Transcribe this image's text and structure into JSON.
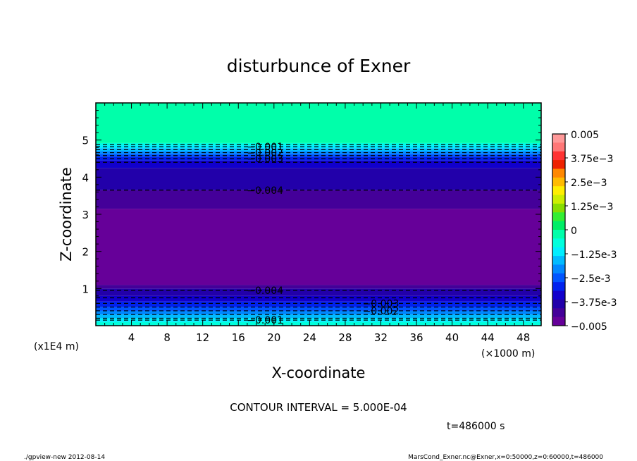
{
  "chart_data": {
    "type": "heatmap",
    "title": "disturbunce of Exner",
    "xlabel": "X-coordinate",
    "ylabel": "Z-coordinate",
    "x_unit": "(×1000 m)",
    "y_unit": "(x1E4 m)",
    "xlim": [
      0,
      50
    ],
    "ylim": [
      0,
      6
    ],
    "x_ticks": [
      "4",
      "8",
      "12",
      "16",
      "20",
      "24",
      "28",
      "32",
      "36",
      "40",
      "44",
      "48"
    ],
    "y_ticks": [
      "1",
      "2",
      "3",
      "4",
      "5"
    ],
    "colorbar": {
      "range": [
        -0.005,
        0.005
      ],
      "labels": [
        "0.005",
        "3.75e-3",
        "2.5e-3",
        "1.25e-3",
        "0",
        "-1.25e-3",
        "-2.5e-3",
        "-3.75e-3",
        "-0.005"
      ],
      "colors": [
        "#ff9999",
        "#ff7777",
        "#ff3333",
        "#ee2200",
        "#ff8800",
        "#ffbb00",
        "#ffee00",
        "#ccee00",
        "#88dd00",
        "#33ee33",
        "#00ee66",
        "#00ffaa",
        "#00ffdd",
        "#00eeff",
        "#00bbff",
        "#0088ff",
        "#0055ff",
        "#0022ee",
        "#1100cc",
        "#2200aa",
        "#440099",
        "#660099"
      ]
    },
    "layers": [
      {
        "z_bottom": 0.0,
        "z_top": 0.1,
        "value": -0.0005
      },
      {
        "z_bottom": 0.1,
        "z_top": 0.2,
        "value": -0.001
      },
      {
        "z_bottom": 0.2,
        "z_top": 0.3,
        "value": -0.0015
      },
      {
        "z_bottom": 0.3,
        "z_top": 0.4,
        "value": -0.002
      },
      {
        "z_bottom": 0.4,
        "z_top": 0.5,
        "value": -0.0025
      },
      {
        "z_bottom": 0.5,
        "z_top": 0.65,
        "value": -0.003
      },
      {
        "z_bottom": 0.65,
        "z_top": 0.8,
        "value": -0.0035
      },
      {
        "z_bottom": 0.8,
        "z_top": 1.0,
        "value": -0.004
      },
      {
        "z_bottom": 1.0,
        "z_top": 1.1,
        "value": -0.0045
      },
      {
        "z_bottom": 1.1,
        "z_top": 3.15,
        "value": -0.0048
      },
      {
        "z_bottom": 3.15,
        "z_top": 3.65,
        "value": -0.0045
      },
      {
        "z_bottom": 3.65,
        "z_top": 4.25,
        "value": -0.004
      },
      {
        "z_bottom": 4.25,
        "z_top": 4.45,
        "value": -0.0035
      },
      {
        "z_bottom": 4.45,
        "z_top": 4.55,
        "value": -0.003
      },
      {
        "z_bottom": 4.55,
        "z_top": 4.62,
        "value": -0.0025
      },
      {
        "z_bottom": 4.62,
        "z_top": 4.7,
        "value": -0.002
      },
      {
        "z_bottom": 4.7,
        "z_top": 4.78,
        "value": -0.0015
      },
      {
        "z_bottom": 4.78,
        "z_top": 4.86,
        "value": -0.001
      },
      {
        "z_bottom": 4.86,
        "z_top": 4.92,
        "value": -0.0005
      },
      {
        "z_bottom": 4.92,
        "z_top": 6.0,
        "value": 0.0
      }
    ],
    "contours": [
      {
        "z": 0.15,
        "label": "-0.001",
        "label_x": 19
      },
      {
        "z": 0.2,
        "label": "",
        "label_x": null
      },
      {
        "z": 0.3,
        "label": "",
        "label_x": null
      },
      {
        "z": 0.4,
        "label": "-0.002",
        "label_x": 32
      },
      {
        "z": 0.5,
        "label": "",
        "label_x": null
      },
      {
        "z": 0.6,
        "label": "-0.003",
        "label_x": 32
      },
      {
        "z": 0.75,
        "label": "",
        "label_x": null
      },
      {
        "z": 0.95,
        "label": "-0.004",
        "label_x": 19
      },
      {
        "z": 3.65,
        "label": "-0.004",
        "label_x": 19
      },
      {
        "z": 4.4,
        "label": "",
        "label_x": null
      },
      {
        "z": 4.5,
        "label": "-0.003",
        "label_x": 19
      },
      {
        "z": 4.58,
        "label": "",
        "label_x": null
      },
      {
        "z": 4.66,
        "label": "-0.002",
        "label_x": 19
      },
      {
        "z": 4.74,
        "label": "",
        "label_x": null
      },
      {
        "z": 4.82,
        "label": "-0.001",
        "label_x": 19
      },
      {
        "z": 4.88,
        "label": "",
        "label_x": null
      }
    ]
  },
  "footer": {
    "contour_interval": "CONTOUR INTERVAL = 5.000E-04",
    "time": "t=486000 s",
    "program": "./gpview-new  2012-08-14",
    "source": "MarsCond_Exner.nc@Exner,x=0:50000,z=0:60000,t=486000"
  }
}
